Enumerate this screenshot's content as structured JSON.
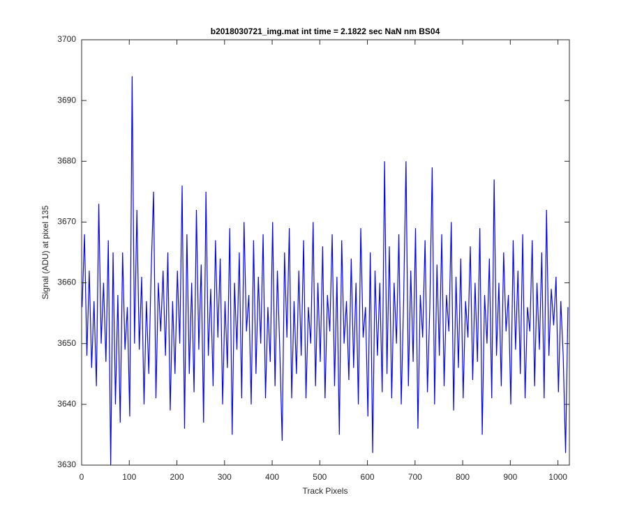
{
  "chart_data": {
    "type": "line",
    "title": "b2018030721_img.mat int time = 2.1822 sec  NaN nm BS04",
    "x_label": "Track Pixels",
    "y_label": "Signal (ADU) at pixel 135",
    "color": "#0000ff",
    "xlim": [
      0,
      1024
    ],
    "xticks": [
      0,
      100,
      200,
      300,
      400,
      500,
      600,
      700,
      800,
      900,
      1000
    ],
    "ylim": [
      3630,
      3700
    ],
    "yticks": [
      3630,
      3640,
      3650,
      3660,
      3670,
      3680,
      3690,
      3700
    ],
    "grid": false,
    "x": [
      1,
      6,
      11,
      16,
      21,
      26,
      31,
      36,
      41,
      46,
      51,
      56,
      61,
      66,
      71,
      76,
      81,
      86,
      91,
      96,
      101,
      106,
      111,
      116,
      121,
      126,
      131,
      136,
      141,
      146,
      151,
      156,
      161,
      166,
      171,
      176,
      181,
      186,
      191,
      196,
      201,
      206,
      211,
      216,
      221,
      226,
      231,
      236,
      241,
      246,
      251,
      256,
      261,
      266,
      271,
      276,
      281,
      286,
      291,
      296,
      301,
      306,
      311,
      316,
      321,
      326,
      331,
      336,
      341,
      346,
      351,
      356,
      361,
      366,
      371,
      376,
      381,
      386,
      391,
      396,
      401,
      406,
      411,
      416,
      421,
      426,
      431,
      436,
      441,
      446,
      451,
      456,
      461,
      466,
      471,
      476,
      481,
      486,
      491,
      496,
      501,
      506,
      511,
      516,
      521,
      526,
      531,
      536,
      541,
      546,
      551,
      556,
      561,
      566,
      571,
      576,
      581,
      586,
      591,
      596,
      601,
      606,
      611,
      616,
      621,
      626,
      631,
      636,
      641,
      646,
      651,
      656,
      661,
      666,
      671,
      676,
      681,
      686,
      691,
      696,
      701,
      706,
      711,
      716,
      721,
      726,
      731,
      736,
      741,
      746,
      751,
      756,
      761,
      766,
      771,
      776,
      781,
      786,
      791,
      796,
      801,
      806,
      811,
      816,
      821,
      826,
      831,
      836,
      841,
      846,
      851,
      856,
      861,
      866,
      871,
      876,
      881,
      886,
      891,
      896,
      901,
      906,
      911,
      916,
      921,
      926,
      931,
      936,
      941,
      946,
      951,
      956,
      961,
      966,
      971,
      976,
      981,
      986,
      991,
      996,
      1001,
      1006,
      1011,
      1016,
      1021
    ],
    "values": [
      3656,
      3668,
      3648,
      3662,
      3646,
      3657,
      3643,
      3673,
      3650,
      3660,
      3647,
      3667,
      3630,
      3665,
      3640,
      3658,
      3637,
      3665,
      3649,
      3656,
      3638,
      3694,
      3650,
      3672,
      3649,
      3661,
      3640,
      3657,
      3645,
      3662,
      3675,
      3641,
      3660,
      3652,
      3662,
      3648,
      3665,
      3639,
      3657,
      3645,
      3662,
      3650,
      3676,
      3636,
      3668,
      3645,
      3660,
      3642,
      3672,
      3649,
      3663,
      3637,
      3675,
      3648,
      3659,
      3643,
      3667,
      3651,
      3664,
      3640,
      3657,
      3646,
      3669,
      3635,
      3660,
      3649,
      3665,
      3641,
      3670,
      3652,
      3658,
      3640,
      3667,
      3645,
      3661,
      3650,
      3668,
      3641,
      3656,
      3647,
      3670,
      3643,
      3662,
      3649,
      3634,
      3665,
      3651,
      3669,
      3641,
      3657,
      3645,
      3662,
      3648,
      3667,
      3641,
      3656,
      3650,
      3670,
      3643,
      3660,
      3647,
      3666,
      3641,
      3658,
      3652,
      3668,
      3643,
      3661,
      3635,
      3667,
      3650,
      3657,
      3644,
      3664,
      3646,
      3660,
      3640,
      3669,
      3651,
      3656,
      3638,
      3665,
      3632,
      3662,
      3648,
      3660,
      3642,
      3680,
      3645,
      3666,
      3641,
      3660,
      3650,
      3668,
      3640,
      3657,
      3680,
      3643,
      3662,
      3647,
      3669,
      3636,
      3658,
      3651,
      3667,
      3642,
      3656,
      3679,
      3640,
      3663,
      3648,
      3668,
      3643,
      3658,
      3652,
      3670,
      3639,
      3661,
      3646,
      3664,
      3641,
      3657,
      3651,
      3666,
      3644,
      3660,
      3647,
      3669,
      3635,
      3658,
      3650,
      3664,
      3641,
      3677,
      3648,
      3660,
      3643,
      3665,
      3652,
      3658,
      3640,
      3667,
      3649,
      3662,
      3645,
      3668,
      3641,
      3656,
      3652,
      3667,
      3643,
      3660,
      3649,
      3665,
      3641,
      3672,
      3648,
      3659,
      3653,
      3661,
      3642,
      3657,
      3648,
      3632,
      3656
    ]
  }
}
